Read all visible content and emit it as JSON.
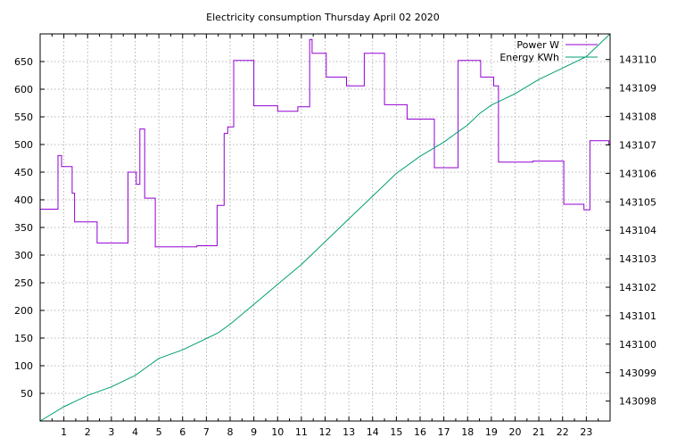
{
  "chart_data": {
    "type": "line",
    "title": "Electricity consumption Thursday April 02 2020",
    "xlabel": "",
    "ylabel": "",
    "y2label": "",
    "xlim": [
      0,
      24
    ],
    "ylim": [
      0,
      700
    ],
    "y2lim": [
      143097.3,
      143110.9
    ],
    "x_ticks": [
      1,
      2,
      3,
      4,
      5,
      6,
      7,
      8,
      9,
      10,
      11,
      12,
      13,
      14,
      15,
      16,
      17,
      18,
      19,
      20,
      21,
      22,
      23
    ],
    "x_tick_labels": [
      "1",
      "2",
      "3",
      "4",
      "5",
      "6",
      "7",
      "8",
      "9",
      "10",
      "11",
      "12",
      "13",
      "14",
      "15",
      "16",
      "17",
      "18",
      "19",
      "20",
      "21",
      "22",
      "23"
    ],
    "y_ticks": [
      50,
      100,
      150,
      200,
      250,
      300,
      350,
      400,
      450,
      500,
      550,
      600,
      650
    ],
    "y_tick_labels": [
      "50",
      "100",
      "150",
      "200",
      "250",
      "300",
      "350",
      "400",
      "450",
      "500",
      "550",
      "600",
      "650"
    ],
    "y2_ticks": [
      143098,
      143099,
      143100,
      143101,
      143102,
      143103,
      143104,
      143105,
      143106,
      143107,
      143108,
      143109,
      143110
    ],
    "y2_tick_labels": [
      "143098",
      "143099",
      "143100",
      "143101",
      "143102",
      "143103",
      "143104",
      "143105",
      "143106",
      "143107",
      "143108",
      "143109",
      "143110"
    ],
    "grid": true,
    "legend_position": "top-right",
    "series": [
      {
        "name": "Power W",
        "axis": "left",
        "color": "#9400d3",
        "step": true,
        "x": [
          0.0,
          0.75,
          0.9,
          1.35,
          1.45,
          2.4,
          3.4,
          3.7,
          4.05,
          4.2,
          4.4,
          4.85,
          6.6,
          7.45,
          7.75,
          7.9,
          8.15,
          9.0,
          10.0,
          10.85,
          11.35,
          11.45,
          12.05,
          12.9,
          13.65,
          14.5,
          15.45,
          16.6,
          17.5,
          17.6,
          18.55,
          19.1,
          19.3,
          20.75,
          22.05,
          22.9,
          23.15,
          23.95
        ],
        "y": [
          383,
          480,
          460,
          412,
          360,
          322,
          322,
          450,
          428,
          528,
          403,
          315,
          317,
          390,
          520,
          532,
          652,
          570,
          560,
          568,
          690,
          665,
          622,
          606,
          665,
          572,
          546,
          458,
          458,
          652,
          622,
          606,
          468,
          470,
          392,
          382,
          507,
          500
        ]
      },
      {
        "name": "Energy KWh",
        "axis": "right",
        "color": "#009e73",
        "step": false,
        "x": [
          0,
          1,
          1.5,
          2,
          3,
          3.5,
          4,
          4.5,
          5,
          6,
          7,
          7.5,
          8,
          9,
          10,
          11,
          12,
          13,
          14,
          15,
          16,
          17,
          17.5,
          18,
          18.5,
          19,
          19.5,
          20,
          21,
          22,
          23,
          24
        ],
        "y": [
          143097.3,
          143097.8,
          143098.0,
          143098.2,
          143098.5,
          143098.7,
          143098.9,
          143099.2,
          143099.5,
          143099.8,
          143100.2,
          143100.4,
          143100.7,
          143101.4,
          143102.1,
          143102.8,
          143103.6,
          143104.4,
          143105.2,
          143106.0,
          143106.6,
          143107.1,
          143107.4,
          143107.7,
          143108.1,
          143108.4,
          143108.6,
          143108.8,
          143109.3,
          143109.7,
          143110.1,
          143110.9
        ]
      }
    ]
  }
}
